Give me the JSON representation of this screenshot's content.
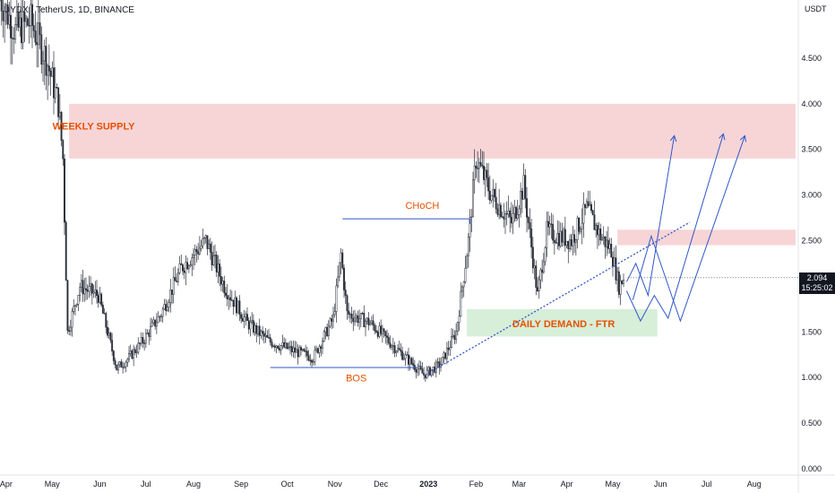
{
  "header": {
    "symbol": "DYDX / TetherUS, 1D, BINANCE",
    "unit": "USDT"
  },
  "price_label": {
    "price": "2.094",
    "countdown": "15:25:02"
  },
  "colors": {
    "supply_zone": "#f4c7c9",
    "demand_zone": "#c9e8cb",
    "annotation_text": "#e65100",
    "structure_line": "#2f57c9",
    "candle": "#2a2e39"
  },
  "chart_data": {
    "type": "line",
    "title": "DYDX / TetherUS, 1D, BINANCE",
    "xlabel": "",
    "ylabel": "USDT",
    "ylim": [
      0,
      5.0
    ],
    "xlim": [
      "2022-03-28",
      "2023-08-28"
    ],
    "yticks": [
      "0.000",
      "0.500",
      "1.000",
      "1.500",
      "2.000",
      "2.500",
      "3.000",
      "3.500",
      "4.000",
      "4.500"
    ],
    "xticks": [
      {
        "date": "2022-04-01",
        "label": "Apr"
      },
      {
        "date": "2022-05-01",
        "label": "May"
      },
      {
        "date": "2022-06-01",
        "label": "Jun"
      },
      {
        "date": "2022-07-01",
        "label": "Jul"
      },
      {
        "date": "2022-08-01",
        "label": "Aug"
      },
      {
        "date": "2022-09-01",
        "label": "Sep"
      },
      {
        "date": "2022-10-01",
        "label": "Oct"
      },
      {
        "date": "2022-11-01",
        "label": "Nov"
      },
      {
        "date": "2022-12-01",
        "label": "Dec"
      },
      {
        "date": "2023-01-01",
        "label": "2023"
      },
      {
        "date": "2023-02-01",
        "label": "Feb"
      },
      {
        "date": "2023-03-01",
        "label": "Mar"
      },
      {
        "date": "2023-04-01",
        "label": "Apr"
      },
      {
        "date": "2023-05-01",
        "label": "May"
      },
      {
        "date": "2023-06-01",
        "label": "Jun"
      },
      {
        "date": "2023-07-01",
        "label": "Jul"
      },
      {
        "date": "2023-08-01",
        "label": "Aug"
      }
    ],
    "series": [
      {
        "values": [
          {
            "x": "2022-03-28",
            "y": 5.2
          },
          {
            "x": "2022-04-08",
            "y": 4.8
          },
          {
            "x": "2022-04-18",
            "y": 4.9
          },
          {
            "x": "2022-04-28",
            "y": 4.5
          },
          {
            "x": "2022-05-06",
            "y": 4.0
          },
          {
            "x": "2022-05-09",
            "y": 3.4
          },
          {
            "x": "2022-05-12",
            "y": 1.5
          },
          {
            "x": "2022-05-20",
            "y": 2.0
          },
          {
            "x": "2022-06-01",
            "y": 1.9
          },
          {
            "x": "2022-06-13",
            "y": 1.1
          },
          {
            "x": "2022-06-20",
            "y": 1.2
          },
          {
            "x": "2022-06-30",
            "y": 1.4
          },
          {
            "x": "2022-07-12",
            "y": 1.7
          },
          {
            "x": "2022-07-25",
            "y": 2.2
          },
          {
            "x": "2022-08-10",
            "y": 2.5
          },
          {
            "x": "2022-08-22",
            "y": 2.0
          },
          {
            "x": "2022-09-06",
            "y": 1.6
          },
          {
            "x": "2022-09-20",
            "y": 1.4
          },
          {
            "x": "2022-10-05",
            "y": 1.3
          },
          {
            "x": "2022-10-19",
            "y": 1.22
          },
          {
            "x": "2022-11-01",
            "y": 1.65
          },
          {
            "x": "2022-11-06",
            "y": 2.35
          },
          {
            "x": "2022-11-10",
            "y": 1.7
          },
          {
            "x": "2022-11-25",
            "y": 1.6
          },
          {
            "x": "2022-12-10",
            "y": 1.35
          },
          {
            "x": "2022-12-30",
            "y": 1.03
          },
          {
            "x": "2023-01-10",
            "y": 1.15
          },
          {
            "x": "2023-01-20",
            "y": 1.5
          },
          {
            "x": "2023-01-28",
            "y": 2.5
          },
          {
            "x": "2023-02-02",
            "y": 3.4
          },
          {
            "x": "2023-02-12",
            "y": 3.0
          },
          {
            "x": "2023-02-25",
            "y": 2.7
          },
          {
            "x": "2023-03-05",
            "y": 3.1
          },
          {
            "x": "2023-03-14",
            "y": 1.9
          },
          {
            "x": "2023-03-20",
            "y": 2.6
          },
          {
            "x": "2023-04-05",
            "y": 2.5
          },
          {
            "x": "2023-04-15",
            "y": 2.85
          },
          {
            "x": "2023-04-24",
            "y": 2.55
          },
          {
            "x": "2023-05-01",
            "y": 2.4
          },
          {
            "x": "2023-05-06",
            "y": 2.0
          },
          {
            "x": "2023-05-09",
            "y": 2.094
          }
        ]
      }
    ],
    "zones": [
      {
        "label": "WEEKLY SUPPLY",
        "from": "2022-05-12",
        "to": "2023-08-28",
        "y_low": 3.4,
        "y_high": 4.0,
        "color": "#f4c7c9"
      },
      {
        "label": "DAILY DEMAND - FTR",
        "from": "2023-01-26",
        "to": "2023-05-30",
        "y_low": 1.45,
        "y_high": 1.75,
        "color": "#c9e8cb"
      },
      {
        "label": "",
        "from": "2023-05-04",
        "to": "2023-08-28",
        "y_low": 2.45,
        "y_high": 2.62,
        "color": "#f4c7c9"
      }
    ],
    "annotations": [
      {
        "text": "WEEKLY SUPPLY",
        "x": "2022-05-28",
        "y": 3.72
      },
      {
        "text": "CHoCH",
        "x": "2022-12-28",
        "y": 2.85
      },
      {
        "text": "BOS",
        "x": "2022-11-15",
        "y": 0.96
      },
      {
        "text": "DAILY DEMAND - FTR",
        "x": "2023-03-30",
        "y": 1.55
      }
    ],
    "structure_lines": [
      {
        "name": "choch",
        "points": [
          {
            "x": "2022-11-06",
            "y": 2.74
          },
          {
            "x": "2023-01-28",
            "y": 2.74
          }
        ]
      },
      {
        "name": "bos",
        "points": [
          {
            "x": "2022-09-20",
            "y": 1.11
          },
          {
            "x": "2022-12-25",
            "y": 1.11
          }
        ]
      },
      {
        "name": "trendline",
        "dashed": true,
        "points": [
          {
            "x": "2022-12-30",
            "y": 1.03
          },
          {
            "x": "2023-06-20",
            "y": 2.7
          }
        ]
      }
    ],
    "projections": [
      [
        {
          "x": "2023-05-10",
          "y": 2.05
        },
        {
          "x": "2023-05-16",
          "y": 2.25
        },
        {
          "x": "2023-05-24",
          "y": 1.9
        },
        {
          "x": "2023-06-10",
          "y": 3.65
        }
      ],
      [
        {
          "x": "2023-05-10",
          "y": 1.95
        },
        {
          "x": "2023-05-19",
          "y": 1.62
        },
        {
          "x": "2023-05-28",
          "y": 1.9
        },
        {
          "x": "2023-06-06",
          "y": 1.65
        },
        {
          "x": "2023-07-12",
          "y": 3.67
        }
      ],
      [
        {
          "x": "2023-05-14",
          "y": 1.85
        },
        {
          "x": "2023-05-26",
          "y": 2.55
        },
        {
          "x": "2023-06-14",
          "y": 1.62
        },
        {
          "x": "2023-07-26",
          "y": 3.65
        }
      ]
    ],
    "grid": false,
    "legend": "none"
  }
}
